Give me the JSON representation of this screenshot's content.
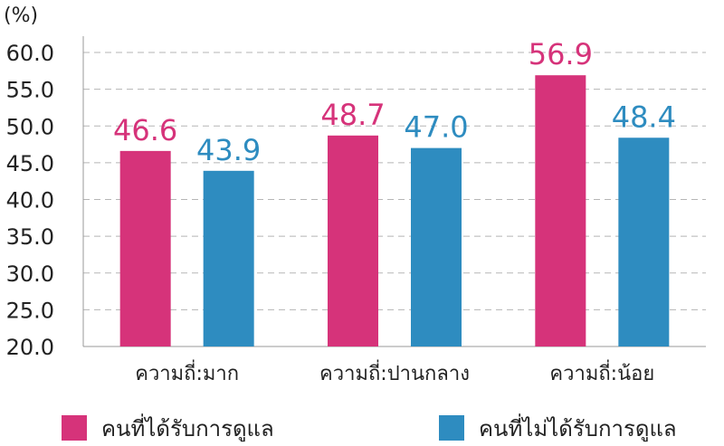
{
  "chart_data": {
    "type": "bar",
    "unit_label": "(%)",
    "categories": [
      "ความถี่:มาก",
      "ความถี่:ปานกลาง",
      "ความถี่:น้อย"
    ],
    "series": [
      {
        "name": "คนที่ได้รับการดูแล",
        "color": "#d6337a",
        "values": [
          46.6,
          48.7,
          56.9
        ],
        "labels": [
          "46.6",
          "48.7",
          "56.9"
        ]
      },
      {
        "name": "คนที่ไม่ได้รับการดูแล",
        "color": "#2e8cc0",
        "values": [
          43.9,
          47.0,
          48.4
        ],
        "labels": [
          "43.9",
          "47.0",
          "48.4"
        ]
      }
    ],
    "ylim": [
      20,
      60
    ],
    "yticks": [
      "20.0",
      "25.0",
      "30.0",
      "35.0",
      "40.0",
      "45.0",
      "50.0",
      "55.0",
      "60.0"
    ],
    "grid": true,
    "legend_position": "bottom"
  }
}
